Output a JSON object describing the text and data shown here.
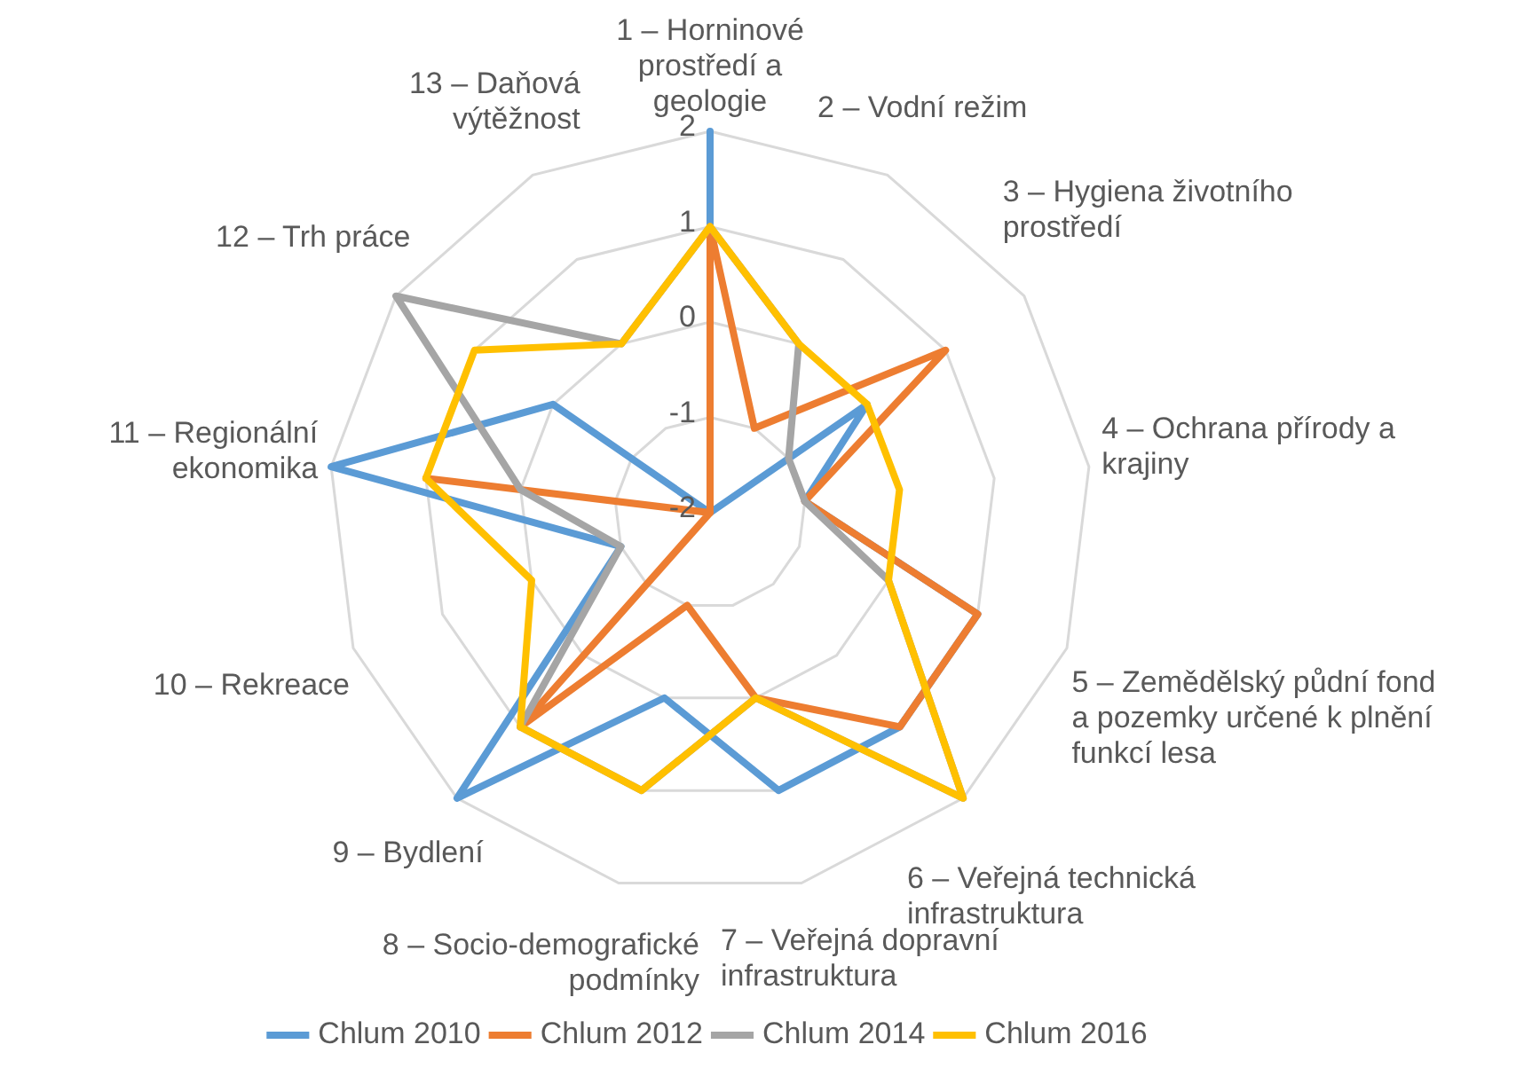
{
  "chart_data": {
    "type": "radar",
    "categories": [
      "1 – Horninové prostředí a geologie",
      "2 – Vodní režim",
      "3 – Hygiena životního prostředí",
      "4 – Ochrana přírody a krajiny",
      "5 – Zemědělský půdní fond a pozemky určené k plnění funkcí lesa",
      "6 – Veřejná technická infrastruktura",
      "7 – Veřejná dopravní infrastruktura",
      "8 – Socio-demografické podmínky",
      "9 – Bydlení",
      "10 – Rekreace",
      "11 – Regionální ekonomika",
      "12 – Trh práce",
      "13 – Daňová výtěžnost"
    ],
    "series": [
      {
        "name": "Chlum 2010",
        "color": "#5b9bd5",
        "values": [
          2,
          -2,
          0,
          -1,
          1,
          1,
          1,
          0,
          2,
          -1,
          2,
          0,
          -2
        ]
      },
      {
        "name": "Chlum 2012",
        "color": "#ed7d31",
        "values": [
          1,
          -1,
          1,
          -1,
          1,
          1,
          0,
          -1,
          1,
          -2,
          1,
          -2,
          -2
        ]
      },
      {
        "name": "Chlum 2014",
        "color": "#a5a5a5",
        "values": [
          1,
          0,
          -1,
          -1,
          0,
          2,
          0,
          1,
          1,
          -1,
          0,
          2,
          0
        ]
      },
      {
        "name": "Chlum 2016",
        "color": "#ffc000",
        "values": [
          1,
          0,
          0,
          0,
          0,
          2,
          0,
          1,
          1,
          0,
          1,
          1,
          0
        ]
      }
    ],
    "ylim": [
      -2,
      2
    ],
    "yticks": [
      -2,
      -1,
      0,
      1,
      2
    ],
    "grid": true,
    "legend": "bottom",
    "marker": "none",
    "line_style": "solid"
  }
}
